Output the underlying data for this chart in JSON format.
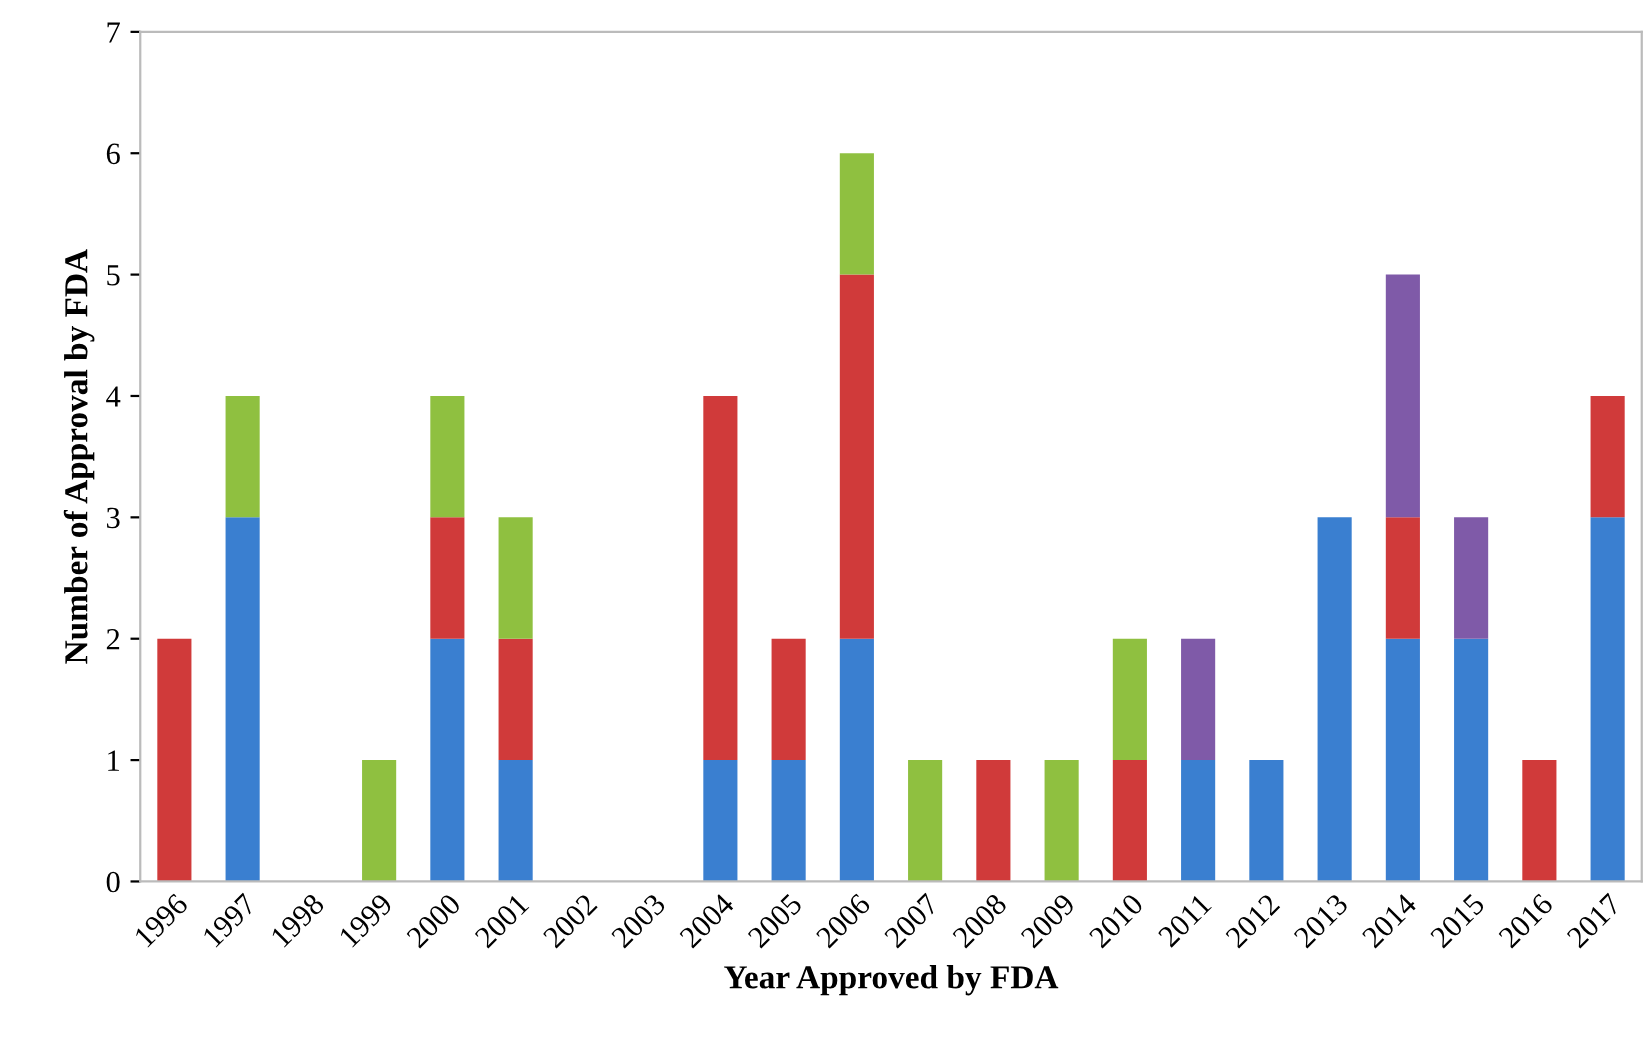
{
  "chart_data": {
    "type": "bar",
    "stacked": true,
    "xlabel": "Year Approved by FDA",
    "ylabel": "Number of Approval by FDA",
    "categories": [
      "1996",
      "1997",
      "1998",
      "1999",
      "2000",
      "2001",
      "2002",
      "2003",
      "2004",
      "2005",
      "2006",
      "2007",
      "2008",
      "2009",
      "2010",
      "2011",
      "2012",
      "2013",
      "2014",
      "2015",
      "2016",
      "2017"
    ],
    "series": [
      {
        "color": "#3a7fd0",
        "values": [
          0,
          3,
          0,
          0,
          2,
          1,
          0,
          0,
          1,
          1,
          2,
          0,
          0,
          0,
          0,
          1,
          1,
          3,
          2,
          2,
          0,
          3
        ]
      },
      {
        "color": "#d03a3a",
        "values": [
          2,
          0,
          0,
          0,
          1,
          1,
          0,
          0,
          3,
          1,
          3,
          0,
          1,
          0,
          1,
          0,
          0,
          0,
          1,
          0,
          1,
          1
        ]
      },
      {
        "color": "#8fc040",
        "values": [
          0,
          1,
          0,
          1,
          1,
          1,
          0,
          0,
          0,
          0,
          1,
          1,
          0,
          1,
          1,
          0,
          0,
          0,
          0,
          0,
          0,
          0
        ]
      },
      {
        "color": "#7f5aa8",
        "values": [
          0,
          0,
          0,
          0,
          0,
          0,
          0,
          0,
          0,
          0,
          0,
          0,
          0,
          0,
          0,
          1,
          0,
          0,
          2,
          1,
          0,
          0
        ]
      }
    ],
    "ylim": [
      0,
      7
    ],
    "yticks": [
      0,
      1,
      2,
      3,
      4,
      5,
      6,
      7
    ],
    "grid": false
  }
}
